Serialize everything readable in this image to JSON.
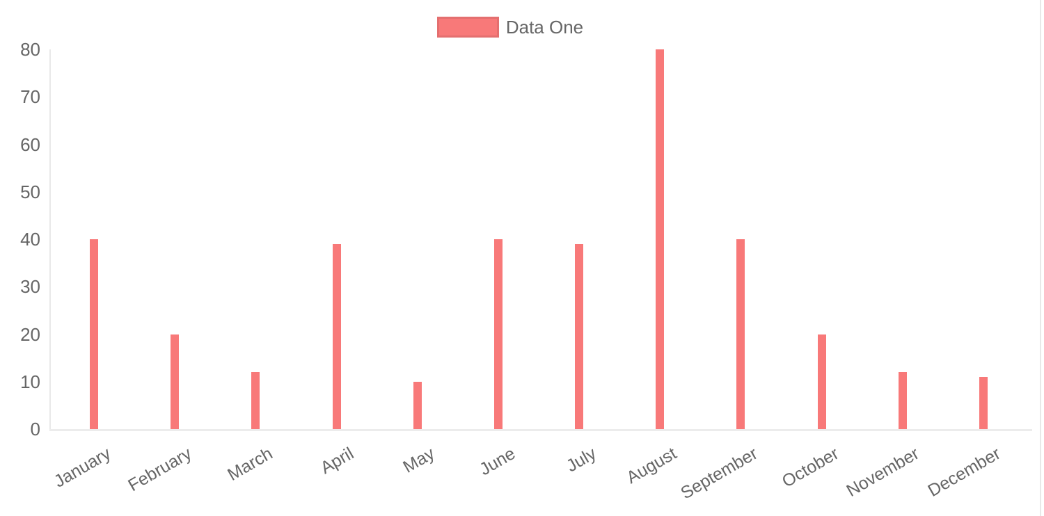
{
  "chart_data": {
    "type": "bar",
    "title": "",
    "xlabel": "",
    "ylabel": "",
    "categories": [
      "January",
      "February",
      "March",
      "April",
      "May",
      "June",
      "July",
      "August",
      "September",
      "October",
      "November",
      "December"
    ],
    "series": [
      {
        "name": "Data One",
        "values": [
          40,
          20,
          12,
          39,
          10,
          40,
          39,
          80,
          40,
          20,
          12,
          11
        ]
      }
    ],
    "ylim": [
      0,
      80
    ],
    "y_ticks": [
      0,
      10,
      20,
      30,
      40,
      50,
      60,
      70,
      80
    ],
    "grid": false,
    "legend_position": "top-center",
    "x_label_rotation_deg": -30
  },
  "legend": {
    "label": "Data One"
  },
  "colors": {
    "bar": "#f87979",
    "tick_text": "#666666",
    "axis_line": "#e9e9e9",
    "legend_border": "rgba(0,0,0,0.08)"
  }
}
